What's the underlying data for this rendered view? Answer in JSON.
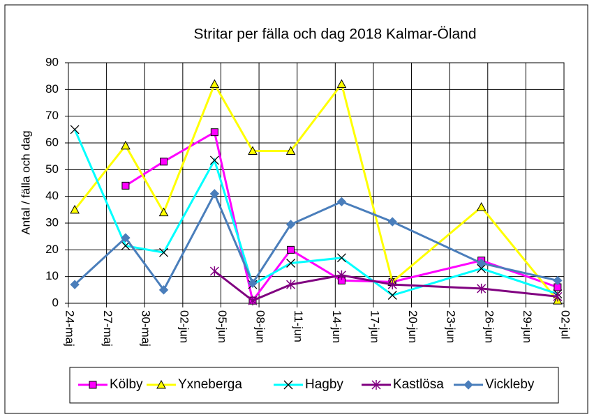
{
  "chart_data": {
    "type": "line",
    "title": "Stritar  per fälla och dag 2018 Kalmar-Öland",
    "y_label": "Antal / fälla och dag",
    "x": [
      "24-maj",
      "28-maj",
      "31-maj",
      "04-jun",
      "07-jun",
      "10-jun",
      "14-jun",
      "18-jun",
      "25-jun",
      "01-jul"
    ],
    "series": [
      {
        "name": "Kölby",
        "color": "#ff00ff",
        "marker": "square",
        "values": [
          null,
          44,
          53,
          64,
          1,
          20,
          8.5,
          8,
          16,
          6
        ]
      },
      {
        "name": "Yxneberga",
        "color": "#ffff00",
        "marker": "triangle",
        "values": [
          35,
          59,
          34,
          82,
          57,
          57,
          82,
          8,
          36,
          1
        ]
      },
      {
        "name": "Hagby",
        "color": "#00ffff",
        "marker": "x",
        "values": [
          65,
          21.5,
          19,
          53.5,
          7,
          15,
          17,
          3,
          13,
          3.5
        ]
      },
      {
        "name": "Kastlösa",
        "color": "#800080",
        "marker": "star",
        "values": [
          null,
          null,
          null,
          12,
          1,
          7,
          10.5,
          7,
          5.5,
          2.5
        ]
      },
      {
        "name": "Vickleby",
        "color": "#4a7ebb",
        "marker": "diamond",
        "values": [
          7,
          24.5,
          5,
          41,
          7.5,
          29.5,
          38,
          30.5,
          15,
          8.5
        ]
      }
    ],
    "xlim": [
      "24-maj",
      "02-jul"
    ],
    "xticks": [
      "24-maj",
      "27-maj",
      "30-maj",
      "02-jun",
      "05-jun",
      "08-jun",
      "11-jun",
      "14-jun",
      "17-jun",
      "20-jun",
      "23-jun",
      "26-jun",
      "29-jun",
      "02-jul"
    ],
    "ylim": [
      0,
      90
    ],
    "yticks": [
      0,
      10,
      20,
      30,
      40,
      50,
      60,
      70,
      80,
      90
    ],
    "grid": true,
    "legend": "bottom"
  }
}
